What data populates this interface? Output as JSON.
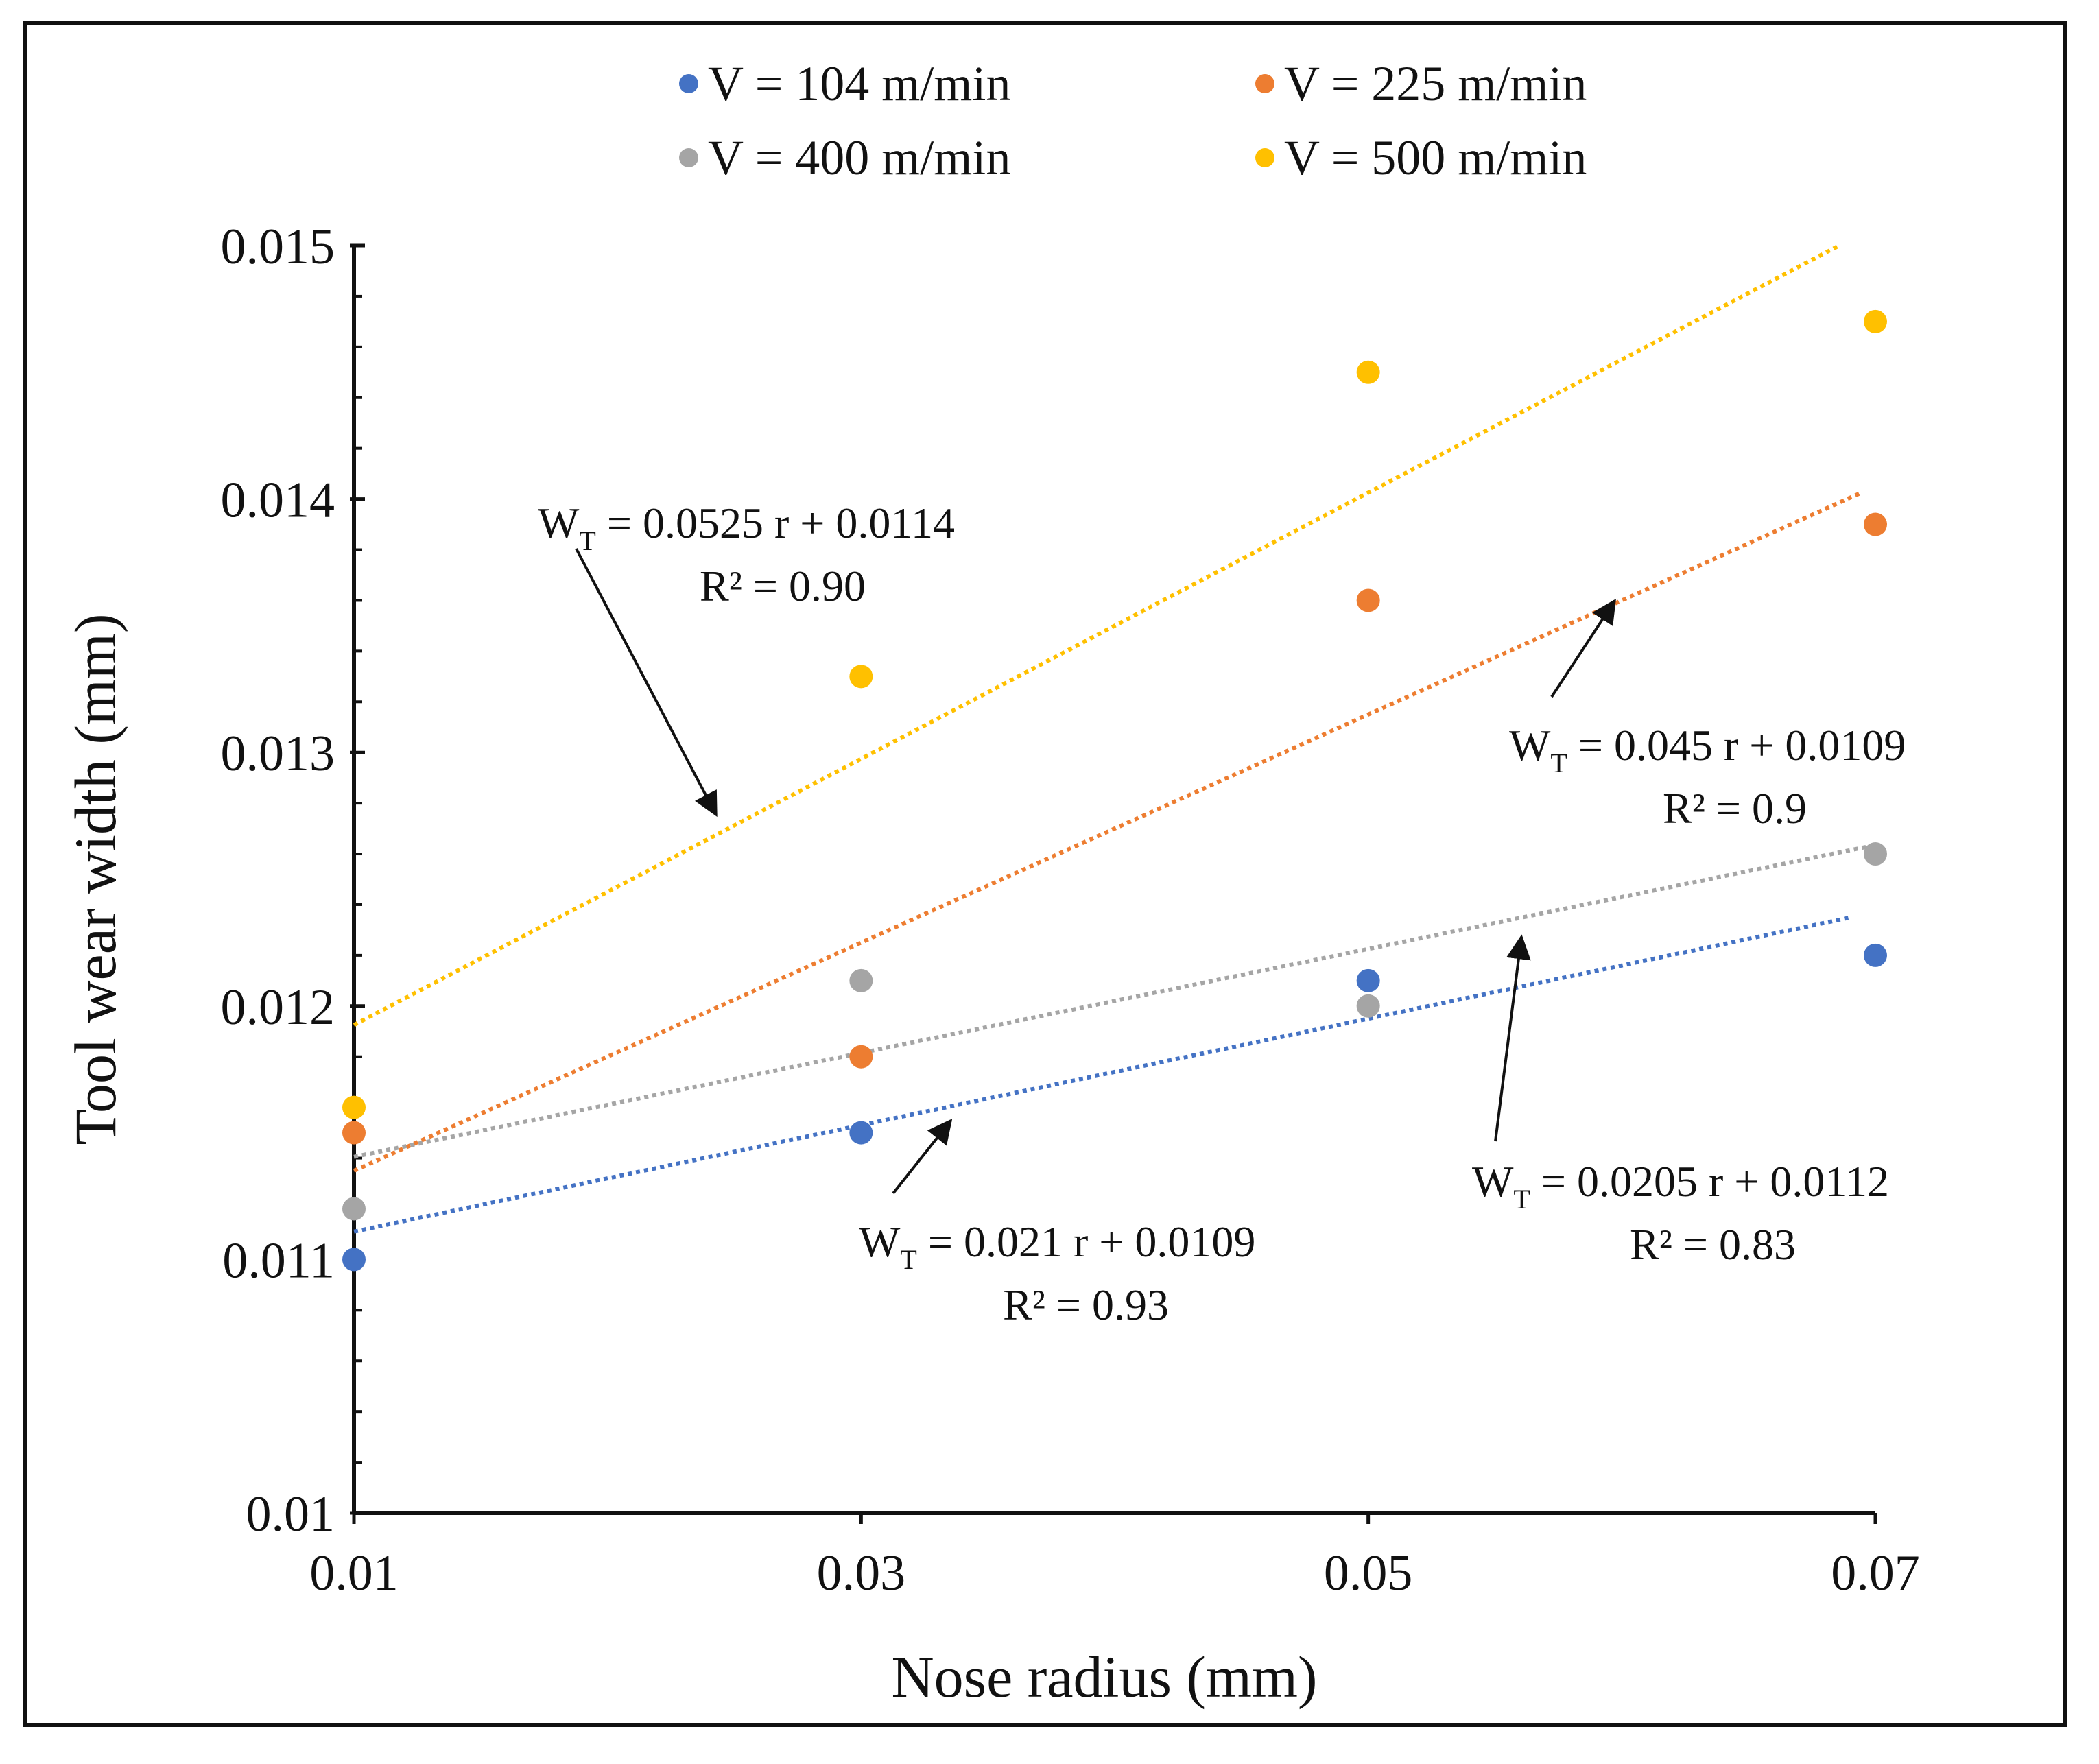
{
  "chart_data": {
    "type": "scatter",
    "xlabel": "Nose radius (mm)",
    "ylabel": "Tool wear width (mm)",
    "xlim": [
      0.01,
      0.07
    ],
    "ylim": [
      0.01,
      0.015
    ],
    "x_ticks": [
      "0.01",
      "0.03",
      "0.05",
      "0.07"
    ],
    "y_ticks": [
      "0.01",
      "0.011",
      "0.012",
      "0.013",
      "0.014",
      "0.015"
    ],
    "grid": false,
    "legend_position": "top",
    "x": [
      0.01,
      0.03,
      0.05,
      0.07
    ],
    "series": [
      {
        "name": "V = 104 m/min",
        "color": "#4472C4",
        "values": [
          0.011,
          0.0115,
          0.0121,
          0.0122
        ],
        "trendline": {
          "slope": 0.021,
          "intercept": 0.0109,
          "x_range": [
            0.01,
            0.069
          ]
        },
        "equation": {
          "prefix": "W",
          "subscript": "T",
          "rest": " = 0.021 r + 0.0109",
          "r2": "R² = 0.93"
        }
      },
      {
        "name": "V = 225 m/min",
        "color": "#ED7D31",
        "values": [
          0.0115,
          0.0118,
          0.0136,
          0.0139
        ],
        "trendline": {
          "slope": 0.045,
          "intercept": 0.0109,
          "x_range": [
            0.01,
            0.0695
          ]
        },
        "equation": {
          "prefix": "W",
          "subscript": "T",
          "rest": " = 0.045 r + 0.0109",
          "r2": "R² = 0.9"
        }
      },
      {
        "name": "V = 400 m/min",
        "color": "#A5A5A5",
        "values": [
          0.0112,
          0.0121,
          0.012,
          0.0126
        ],
        "trendline": {
          "slope": 0.0205,
          "intercept": 0.0112,
          "x_range": [
            0.01,
            0.07
          ]
        },
        "equation": {
          "prefix": "W",
          "subscript": "T",
          "rest": " = 0.0205 r + 0.0112",
          "r2": "R² = 0.83"
        }
      },
      {
        "name": "V = 500 m/min",
        "color": "#FFC000",
        "values": [
          0.0116,
          0.0133,
          0.0145,
          0.0147
        ],
        "trendline": {
          "slope": 0.0525,
          "intercept": 0.0114,
          "x_range": [
            0.01,
            0.0685
          ]
        },
        "equation": {
          "prefix": "W",
          "subscript": "T",
          "rest": " = 0.0525 r + 0.0114",
          "r2": "R² = 0.90"
        }
      }
    ]
  }
}
